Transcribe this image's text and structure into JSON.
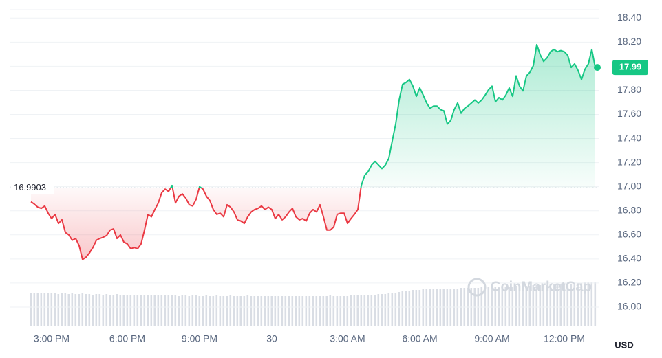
{
  "chart_data": {
    "type": "line",
    "currency": "USD",
    "watermark": "CoinMarketCap",
    "baseline": 16.9903,
    "last_price": 17.99,
    "up_color": "#16c784",
    "down_color": "#ea3943",
    "volume_color": "#d9dde4",
    "grid": true,
    "ylim": [
      15.84,
      18.47
    ],
    "yticks": [
      {
        "value": 16.0,
        "label": "16.00"
      },
      {
        "value": 16.2,
        "label": "16.20"
      },
      {
        "value": 16.4,
        "label": "16.40"
      },
      {
        "value": 16.6,
        "label": "16.60"
      },
      {
        "value": 16.8,
        "label": "16.80"
      },
      {
        "value": 17.0,
        "label": "17.00"
      },
      {
        "value": 17.2,
        "label": "17.20"
      },
      {
        "value": 17.4,
        "label": "17.40"
      },
      {
        "value": 17.6,
        "label": "17.60"
      },
      {
        "value": 17.8,
        "label": "17.80"
      },
      {
        "value": 18.0,
        "label": "18.00"
      },
      {
        "value": 18.2,
        "label": "18.20"
      },
      {
        "value": 18.4,
        "label": "18.40"
      }
    ],
    "categories": [
      null,
      null,
      null,
      null,
      null,
      null,
      "3:00 PM",
      null,
      null,
      null,
      null,
      null,
      null,
      null,
      null,
      null,
      null,
      null,
      null,
      null,
      null,
      null,
      null,
      null,
      null,
      null,
      null,
      null,
      "6:00 PM",
      null,
      null,
      null,
      null,
      null,
      null,
      null,
      null,
      null,
      null,
      null,
      null,
      null,
      null,
      null,
      null,
      null,
      null,
      null,
      null,
      "9:00 PM",
      null,
      null,
      null,
      null,
      null,
      null,
      null,
      null,
      null,
      null,
      null,
      null,
      null,
      null,
      null,
      null,
      null,
      null,
      null,
      null,
      "30",
      null,
      null,
      null,
      null,
      null,
      null,
      null,
      null,
      null,
      null,
      null,
      null,
      null,
      null,
      null,
      null,
      null,
      null,
      null,
      null,
      null,
      "3:00 AM",
      null,
      null,
      null,
      null,
      null,
      null,
      null,
      null,
      null,
      null,
      null,
      null,
      null,
      null,
      null,
      null,
      null,
      null,
      null,
      null,
      "6:00 AM",
      null,
      null,
      null,
      null,
      null,
      null,
      null,
      null,
      null,
      null,
      null,
      null,
      null,
      null,
      null,
      null,
      null,
      null,
      null,
      null,
      "9:00 AM",
      null,
      null,
      null,
      null,
      null,
      null,
      null,
      null,
      null,
      null,
      null,
      null,
      null,
      null,
      null,
      null,
      null,
      null,
      null,
      null,
      "12:00 PM",
      null,
      null,
      null,
      null,
      null,
      null,
      null,
      null,
      null
    ],
    "values": [
      16.875,
      16.855,
      16.83,
      16.82,
      16.84,
      16.78,
      16.735,
      16.77,
      16.695,
      16.725,
      16.62,
      16.6,
      16.555,
      16.57,
      16.51,
      16.395,
      16.415,
      16.45,
      16.495,
      16.555,
      16.57,
      16.58,
      16.595,
      16.64,
      16.65,
      16.57,
      16.6,
      16.54,
      16.525,
      16.485,
      16.495,
      16.485,
      16.525,
      16.64,
      16.77,
      16.75,
      16.81,
      16.865,
      16.95,
      16.98,
      16.96,
      17.01,
      16.865,
      16.92,
      16.94,
      16.905,
      16.85,
      16.84,
      16.895,
      17.0,
      16.98,
      16.92,
      16.885,
      16.81,
      16.77,
      16.78,
      16.75,
      16.85,
      16.83,
      16.79,
      16.725,
      16.715,
      16.695,
      16.75,
      16.79,
      16.81,
      16.82,
      16.84,
      16.81,
      16.83,
      16.81,
      16.735,
      16.77,
      16.725,
      16.75,
      16.79,
      16.82,
      16.75,
      16.725,
      16.735,
      16.715,
      16.78,
      16.81,
      16.79,
      16.85,
      16.75,
      16.64,
      16.64,
      16.665,
      16.77,
      16.78,
      16.78,
      16.695,
      16.735,
      16.77,
      16.81,
      17.01,
      17.095,
      17.125,
      17.18,
      17.21,
      17.18,
      17.15,
      17.18,
      17.235,
      17.38,
      17.52,
      17.72,
      17.85,
      17.865,
      17.89,
      17.835,
      17.75,
      17.82,
      17.76,
      17.695,
      17.65,
      17.67,
      17.67,
      17.64,
      17.63,
      17.52,
      17.55,
      17.64,
      17.695,
      17.61,
      17.65,
      17.67,
      17.695,
      17.72,
      17.695,
      17.72,
      17.76,
      17.805,
      17.835,
      17.705,
      17.74,
      17.72,
      17.76,
      17.82,
      17.75,
      17.92,
      17.835,
      17.795,
      17.92,
      17.95,
      18.005,
      18.18,
      18.095,
      18.04,
      18.07,
      18.12,
      18.14,
      18.12,
      18.13,
      18.12,
      18.09,
      17.99,
      18.02,
      17.965,
      17.89,
      17.975,
      18.02,
      18.14,
      17.99
    ],
    "volume": [
      49,
      49,
      48,
      49,
      48,
      48,
      49,
      48,
      47,
      48,
      48,
      47,
      48,
      47,
      47,
      48,
      47,
      47,
      46,
      47,
      47,
      46,
      47,
      46,
      46,
      47,
      46,
      46,
      45,
      46,
      46,
      45,
      46,
      45,
      45,
      46,
      45,
      45,
      45,
      45,
      45,
      45,
      45,
      44,
      45,
      45,
      44,
      45,
      45,
      44,
      44,
      45,
      44,
      44,
      45,
      44,
      44,
      44,
      45,
      44,
      44,
      44,
      44,
      45,
      44,
      44,
      44,
      44,
      44,
      44,
      44,
      44,
      44,
      44,
      44,
      44,
      44,
      44,
      44,
      44,
      44,
      44,
      44,
      44,
      44,
      44,
      44,
      45,
      44,
      44,
      44,
      44,
      44,
      45,
      45,
      45,
      45,
      46,
      46,
      46,
      46,
      47,
      47,
      47,
      48,
      48,
      49,
      50,
      51,
      52,
      52,
      53,
      53,
      53,
      54,
      54,
      54,
      54,
      54,
      55,
      55,
      55,
      55,
      55,
      55,
      56,
      56,
      56,
      56,
      56,
      56,
      57,
      57,
      57,
      57,
      57,
      58,
      58,
      58,
      58,
      58,
      59,
      59,
      59,
      59,
      59,
      60,
      60,
      60,
      60,
      60,
      61,
      61,
      61,
      61,
      62,
      62,
      62,
      62,
      63,
      63,
      64,
      64,
      65,
      65
    ]
  }
}
